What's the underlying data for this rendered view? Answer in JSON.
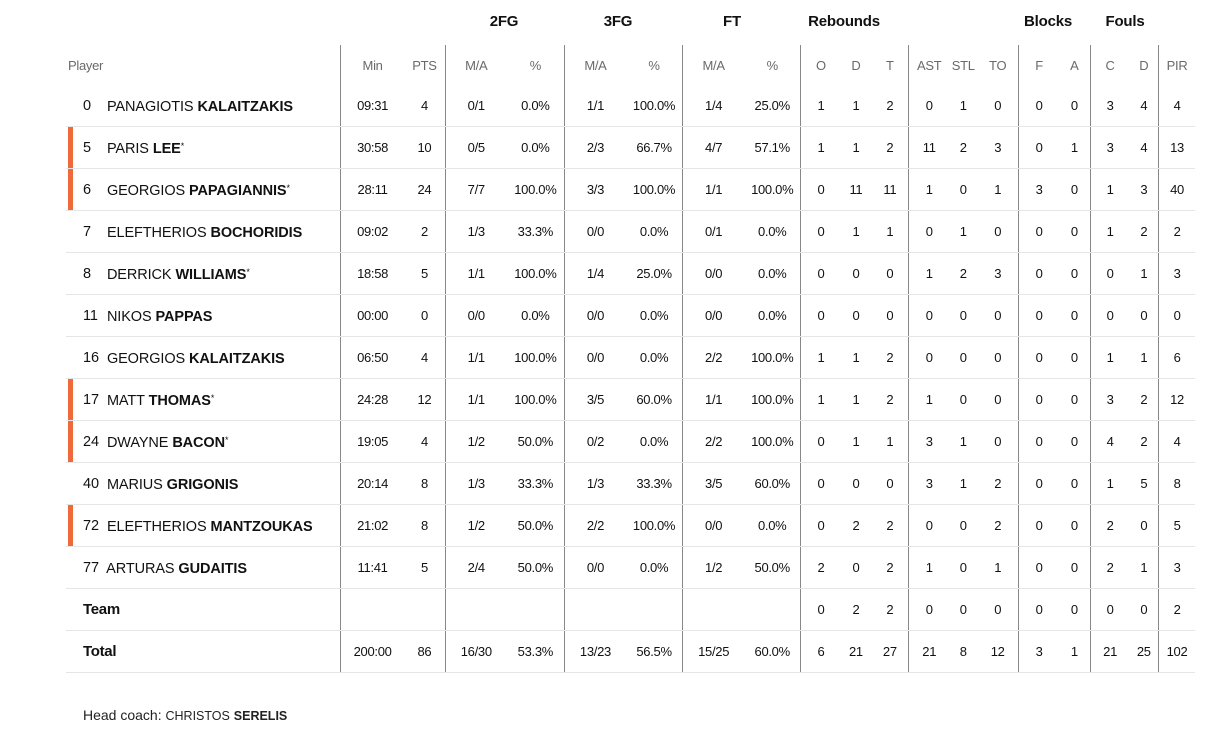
{
  "groups": {
    "fg2": "2FG",
    "fg3": "3FG",
    "ft": "FT",
    "reb": "Rebounds",
    "blk": "Blocks",
    "fouls": "Fouls"
  },
  "columns": {
    "player": "Player",
    "min": "Min",
    "pts": "PTS",
    "fg2_ma": "M/A",
    "fg2_pct": "%",
    "fg3_ma": "M/A",
    "fg3_pct": "%",
    "ft_ma": "M/A",
    "ft_pct": "%",
    "reb_o": "O",
    "reb_d": "D",
    "reb_t": "T",
    "ast": "AST",
    "stl": "STL",
    "to": "TO",
    "blk_f": "F",
    "blk_a": "A",
    "foul_c": "C",
    "foul_d": "D",
    "pir": "PIR"
  },
  "players": [
    {
      "num": "0",
      "first": "PANAGIOTIS",
      "last": "KALAITZAKIS",
      "starter": false,
      "star": "",
      "min": "09:31",
      "pts": "4",
      "fg2": "0/1",
      "fg2p": "0.0%",
      "fg3": "1/1",
      "fg3p": "100.0%",
      "ft": "1/4",
      "ftp": "25.0%",
      "o": "1",
      "d": "1",
      "t": "2",
      "ast": "0",
      "stl": "1",
      "to": "0",
      "bf": "0",
      "ba": "0",
      "fc": "3",
      "fd": "4",
      "pir": "4"
    },
    {
      "num": "5",
      "first": "PARIS",
      "last": "LEE",
      "starter": true,
      "star": "*",
      "min": "30:58",
      "pts": "10",
      "fg2": "0/5",
      "fg2p": "0.0%",
      "fg3": "2/3",
      "fg3p": "66.7%",
      "ft": "4/7",
      "ftp": "57.1%",
      "o": "1",
      "d": "1",
      "t": "2",
      "ast": "11",
      "stl": "2",
      "to": "3",
      "bf": "0",
      "ba": "1",
      "fc": "3",
      "fd": "4",
      "pir": "13"
    },
    {
      "num": "6",
      "first": "GEORGIOS",
      "last": "PAPAGIANNIS",
      "starter": true,
      "star": "*",
      "min": "28:11",
      "pts": "24",
      "fg2": "7/7",
      "fg2p": "100.0%",
      "fg3": "3/3",
      "fg3p": "100.0%",
      "ft": "1/1",
      "ftp": "100.0%",
      "o": "0",
      "d": "11",
      "t": "11",
      "ast": "1",
      "stl": "0",
      "to": "1",
      "bf": "3",
      "ba": "0",
      "fc": "1",
      "fd": "3",
      "pir": "40"
    },
    {
      "num": "7",
      "first": "ELEFTHERIOS",
      "last": "BOCHORIDIS",
      "starter": false,
      "star": "",
      "min": "09:02",
      "pts": "2",
      "fg2": "1/3",
      "fg2p": "33.3%",
      "fg3": "0/0",
      "fg3p": "0.0%",
      "ft": "0/1",
      "ftp": "0.0%",
      "o": "0",
      "d": "1",
      "t": "1",
      "ast": "0",
      "stl": "1",
      "to": "0",
      "bf": "0",
      "ba": "0",
      "fc": "1",
      "fd": "2",
      "pir": "2"
    },
    {
      "num": "8",
      "first": "DERRICK",
      "last": "WILLIAMS",
      "starter": false,
      "star": "*",
      "min": "18:58",
      "pts": "5",
      "fg2": "1/1",
      "fg2p": "100.0%",
      "fg3": "1/4",
      "fg3p": "25.0%",
      "ft": "0/0",
      "ftp": "0.0%",
      "o": "0",
      "d": "0",
      "t": "0",
      "ast": "1",
      "stl": "2",
      "to": "3",
      "bf": "0",
      "ba": "0",
      "fc": "0",
      "fd": "1",
      "pir": "3"
    },
    {
      "num": "11",
      "first": "NIKOS",
      "last": "PAPPAS",
      "starter": false,
      "star": "",
      "min": "00:00",
      "pts": "0",
      "fg2": "0/0",
      "fg2p": "0.0%",
      "fg3": "0/0",
      "fg3p": "0.0%",
      "ft": "0/0",
      "ftp": "0.0%",
      "o": "0",
      "d": "0",
      "t": "0",
      "ast": "0",
      "stl": "0",
      "to": "0",
      "bf": "0",
      "ba": "0",
      "fc": "0",
      "fd": "0",
      "pir": "0"
    },
    {
      "num": "16",
      "first": "GEORGIOS",
      "last": "KALAITZAKIS",
      "starter": false,
      "star": "",
      "min": "06:50",
      "pts": "4",
      "fg2": "1/1",
      "fg2p": "100.0%",
      "fg3": "0/0",
      "fg3p": "0.0%",
      "ft": "2/2",
      "ftp": "100.0%",
      "o": "1",
      "d": "1",
      "t": "2",
      "ast": "0",
      "stl": "0",
      "to": "0",
      "bf": "0",
      "ba": "0",
      "fc": "1",
      "fd": "1",
      "pir": "6"
    },
    {
      "num": "17",
      "first": "MATT",
      "last": "THOMAS",
      "starter": true,
      "star": "*",
      "min": "24:28",
      "pts": "12",
      "fg2": "1/1",
      "fg2p": "100.0%",
      "fg3": "3/5",
      "fg3p": "60.0%",
      "ft": "1/1",
      "ftp": "100.0%",
      "o": "1",
      "d": "1",
      "t": "2",
      "ast": "1",
      "stl": "0",
      "to": "0",
      "bf": "0",
      "ba": "0",
      "fc": "3",
      "fd": "2",
      "pir": "12"
    },
    {
      "num": "24",
      "first": "DWAYNE",
      "last": "BACON",
      "starter": true,
      "star": "*",
      "min": "19:05",
      "pts": "4",
      "fg2": "1/2",
      "fg2p": "50.0%",
      "fg3": "0/2",
      "fg3p": "0.0%",
      "ft": "2/2",
      "ftp": "100.0%",
      "o": "0",
      "d": "1",
      "t": "1",
      "ast": "3",
      "stl": "1",
      "to": "0",
      "bf": "0",
      "ba": "0",
      "fc": "4",
      "fd": "2",
      "pir": "4"
    },
    {
      "num": "40",
      "first": "MARIUS",
      "last": "GRIGONIS",
      "starter": false,
      "star": "",
      "min": "20:14",
      "pts": "8",
      "fg2": "1/3",
      "fg2p": "33.3%",
      "fg3": "1/3",
      "fg3p": "33.3%",
      "ft": "3/5",
      "ftp": "60.0%",
      "o": "0",
      "d": "0",
      "t": "0",
      "ast": "3",
      "stl": "1",
      "to": "2",
      "bf": "0",
      "ba": "0",
      "fc": "1",
      "fd": "5",
      "pir": "8"
    },
    {
      "num": "72",
      "first": "ELEFTHERIOS",
      "last": "MANTZOUKAS",
      "starter": true,
      "star": "",
      "min": "21:02",
      "pts": "8",
      "fg2": "1/2",
      "fg2p": "50.0%",
      "fg3": "2/2",
      "fg3p": "100.0%",
      "ft": "0/0",
      "ftp": "0.0%",
      "o": "0",
      "d": "2",
      "t": "2",
      "ast": "0",
      "stl": "0",
      "to": "2",
      "bf": "0",
      "ba": "0",
      "fc": "2",
      "fd": "0",
      "pir": "5"
    },
    {
      "num": "77",
      "first": "ARTURAS",
      "last": "GUDAITIS",
      "starter": false,
      "star": "",
      "min": "11:41",
      "pts": "5",
      "fg2": "2/4",
      "fg2p": "50.0%",
      "fg3": "0/0",
      "fg3p": "0.0%",
      "ft": "1/2",
      "ftp": "50.0%",
      "o": "2",
      "d": "0",
      "t": "2",
      "ast": "1",
      "stl": "0",
      "to": "1",
      "bf": "0",
      "ba": "0",
      "fc": "2",
      "fd": "1",
      "pir": "3"
    }
  ],
  "team": {
    "label": "Team",
    "o": "0",
    "d": "2",
    "t": "2",
    "ast": "0",
    "stl": "0",
    "to": "0",
    "bf": "0",
    "ba": "0",
    "fc": "0",
    "fd": "0",
    "pir": "2"
  },
  "total": {
    "label": "Total",
    "min": "200:00",
    "pts": "86",
    "fg2": "16/30",
    "fg2p": "53.3%",
    "fg3": "13/23",
    "fg3p": "56.5%",
    "ft": "15/25",
    "ftp": "60.0%",
    "o": "6",
    "d": "21",
    "t": "27",
    "ast": "21",
    "stl": "8",
    "to": "12",
    "bf": "3",
    "ba": "1",
    "fc": "21",
    "fd": "25",
    "pir": "102"
  },
  "coach": {
    "prefix": "Head coach:",
    "first": "CHRISTOS",
    "last": "SERELIS"
  },
  "colors": {
    "starter_marker": "#ee6a3a",
    "divider": "#888888"
  }
}
